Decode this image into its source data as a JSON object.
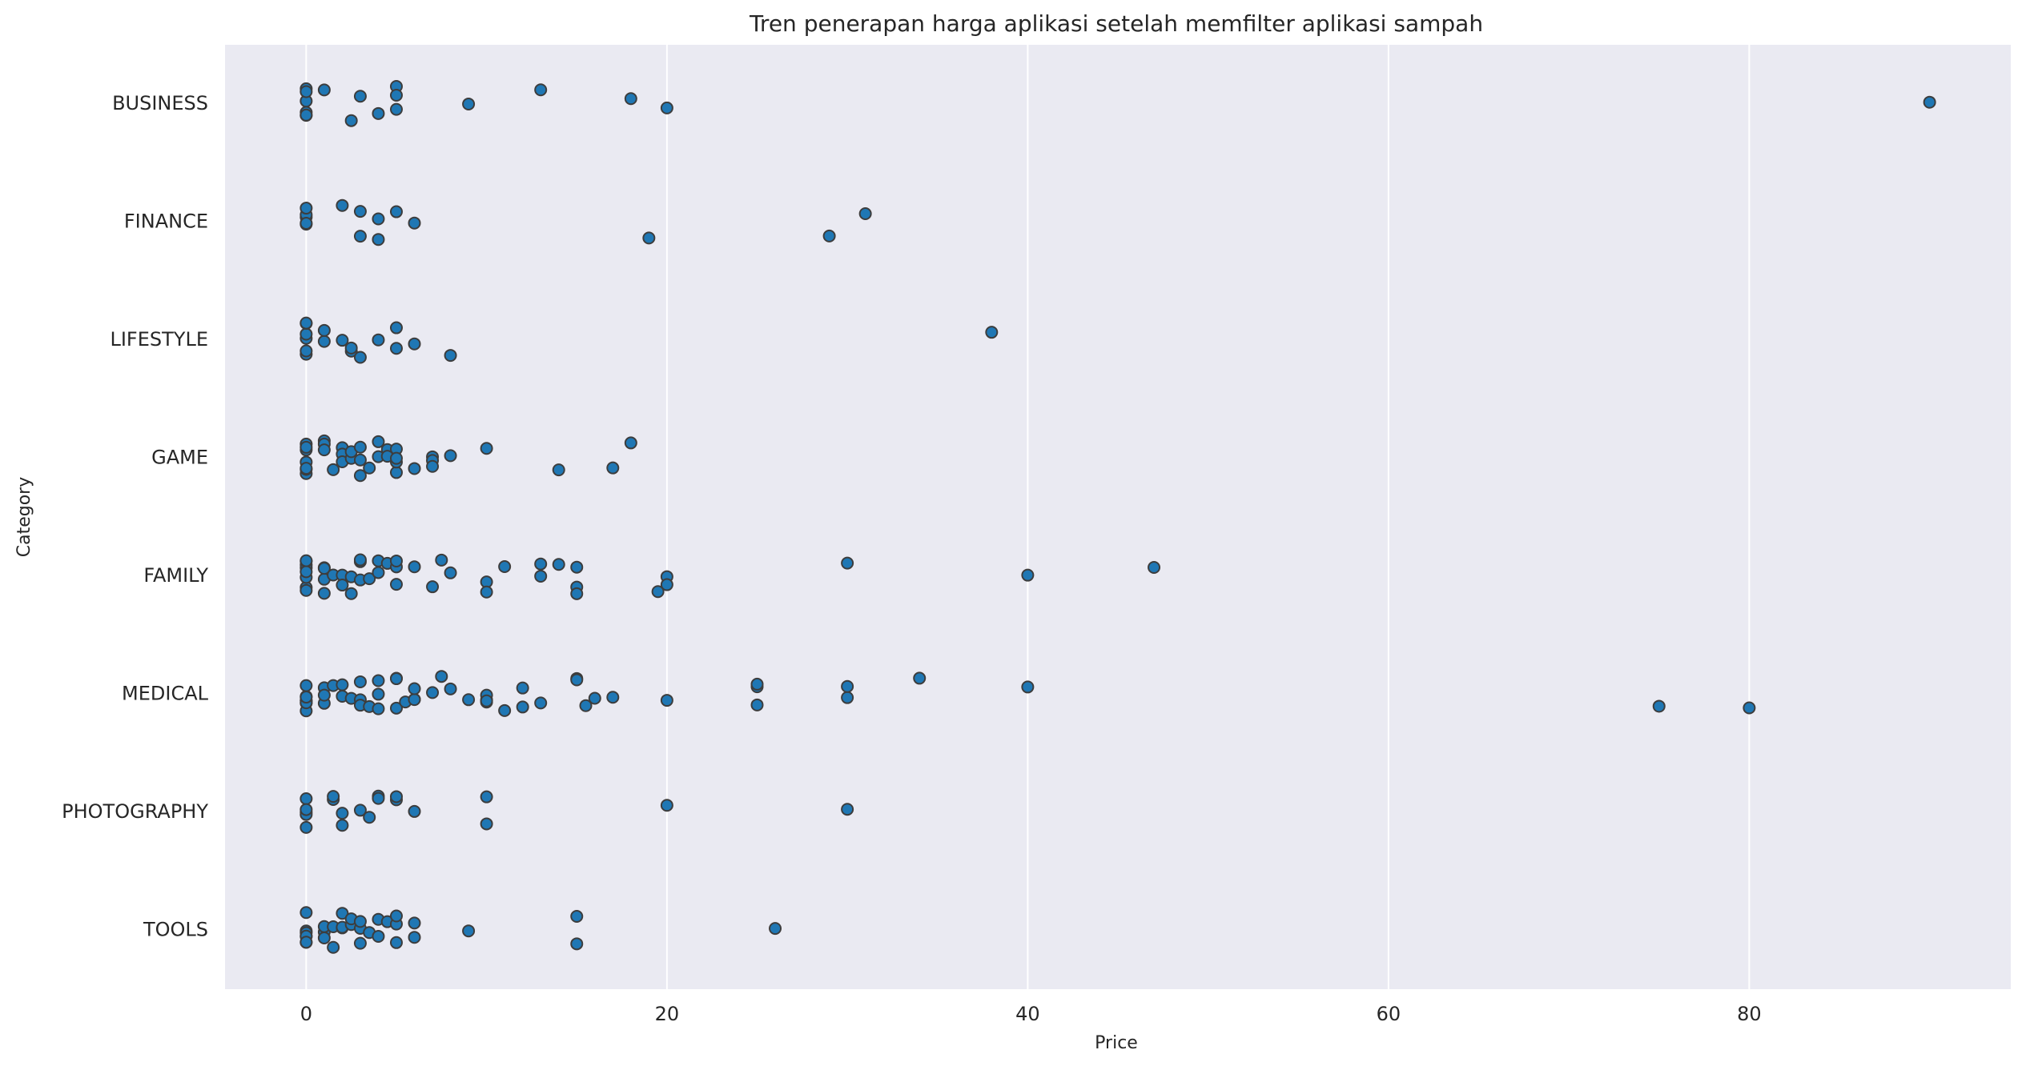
{
  "chart_data": {
    "type": "strip",
    "title": "Tren penerapan harga aplikasi setelah memfilter aplikasi sampah",
    "x_label": "Price",
    "y_label": "Category",
    "categories": [
      "BUSINESS",
      "FINANCE",
      "LIFESTYLE",
      "GAME",
      "FAMILY",
      "MEDICAL",
      "PHOTOGRAPHY",
      "TOOLS"
    ],
    "values": [
      [
        0,
        0,
        0,
        0,
        0,
        0,
        1,
        2.5,
        3,
        4,
        5,
        5,
        5,
        9,
        13,
        18,
        20,
        90
      ],
      [
        0,
        0,
        0,
        0,
        0,
        2,
        3,
        3,
        4,
        4,
        5,
        6,
        19,
        29,
        31
      ],
      [
        0,
        0,
        0,
        0,
        0,
        0,
        1,
        1,
        2,
        2.5,
        2.5,
        3,
        4,
        5,
        5,
        6,
        8,
        38
      ],
      [
        0,
        0,
        0,
        0,
        0,
        0,
        0,
        1,
        1,
        1,
        1.5,
        2,
        2,
        2,
        2.5,
        2.5,
        3,
        3,
        3,
        3.5,
        4,
        4,
        4.5,
        4.5,
        5,
        5,
        5,
        5,
        6,
        7,
        7,
        7,
        8,
        10,
        14,
        17,
        18
      ],
      [
        0,
        0,
        0,
        0,
        0,
        0,
        0,
        0,
        1,
        1,
        1,
        1,
        1.5,
        2,
        2,
        2.5,
        2.5,
        3,
        3,
        3,
        3.5,
        4,
        4,
        4.5,
        5,
        5,
        5,
        6,
        7,
        7.5,
        8,
        10,
        10,
        11,
        13,
        13,
        14,
        15,
        15,
        15,
        19.5,
        20,
        20,
        30,
        40,
        47
      ],
      [
        0,
        0,
        0,
        0,
        0,
        0,
        0,
        0,
        1,
        1,
        1,
        1.5,
        2,
        2,
        2.5,
        3,
        3,
        3,
        3.5,
        4,
        4,
        4,
        5,
        5,
        5,
        5.5,
        6,
        6,
        6,
        7,
        7.5,
        8,
        9,
        10,
        10,
        10,
        10,
        11,
        12,
        12,
        13,
        15,
        15,
        15.5,
        16,
        17,
        20,
        25,
        25,
        25,
        30,
        30,
        34,
        40,
        75,
        80
      ],
      [
        0,
        0,
        0,
        0,
        0,
        1.5,
        1.5,
        2,
        2,
        3,
        3.5,
        4,
        4,
        5,
        5,
        6,
        10,
        10,
        20,
        30
      ],
      [
        0,
        0,
        0,
        0,
        0,
        0,
        0,
        1,
        1,
        1,
        1.5,
        1.5,
        2,
        2,
        2,
        2.5,
        2.5,
        3,
        3,
        3,
        3.5,
        4,
        4,
        4.5,
        5,
        5,
        5,
        6,
        6,
        9,
        15,
        15,
        26
      ]
    ],
    "color": "#1f77b4",
    "edge_color": "#3d3d3d",
    "background": "#eaeaf2",
    "xlim": [
      -4.5,
      94.5
    ],
    "xticks": [
      0,
      20,
      40,
      60,
      80
    ],
    "grid": true
  }
}
